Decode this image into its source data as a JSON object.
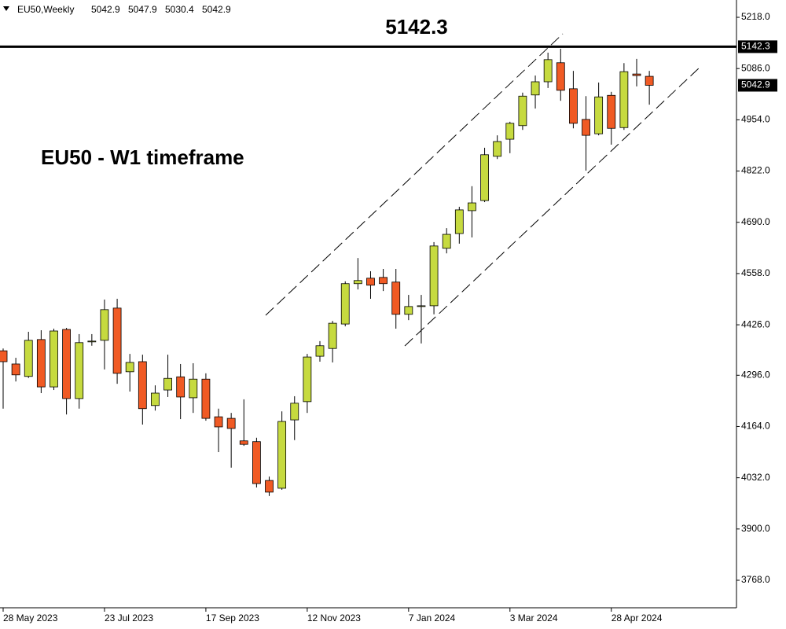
{
  "chart_data": {
    "type": "candlestick",
    "symbol": "EU50,Weekly",
    "header_values": [
      5042.9,
      5047.9,
      5030.4,
      5042.9
    ],
    "title": "EU50 - W1 timeframe",
    "level": 5142.3,
    "categories": [
      "28 May 2023",
      null,
      null,
      null,
      null,
      null,
      null,
      null,
      "23 Jul 2023",
      null,
      null,
      null,
      null,
      null,
      null,
      null,
      "17 Sep 2023",
      null,
      null,
      null,
      null,
      null,
      null,
      null,
      "12 Nov 2023",
      null,
      null,
      null,
      null,
      null,
      null,
      null,
      "7 Jan 2024",
      null,
      null,
      null,
      null,
      null,
      null,
      null,
      "3 Mar 2024",
      null,
      null,
      null,
      null,
      null,
      null,
      null,
      "28 Apr 2024",
      null,
      null,
      null
    ],
    "open": [
      4359,
      4325,
      4293,
      4388,
      4266,
      4414,
      4236,
      4382,
      4386,
      4469,
      4305,
      4331,
      4218,
      4258,
      4292,
      4238,
      4286,
      4189,
      4185,
      4127,
      4125,
      4025,
      4005,
      4181,
      4228,
      4345,
      4365,
      4428,
      4532,
      4546,
      4548,
      4536,
      4453,
      4474,
      4475,
      4623,
      4661,
      4720,
      4746,
      4860,
      4904,
      4939,
      5018,
      5052,
      5101,
      5034,
      4955,
      4918,
      5017,
      4934,
      5072,
      5066
    ],
    "high": [
      4365,
      4341,
      4408,
      4412,
      4416,
      4418,
      4402,
      4402,
      4491,
      4493,
      4351,
      4349,
      4270,
      4349,
      4325,
      4327,
      4301,
      4210,
      4199,
      4234,
      4135,
      4035,
      4203,
      4242,
      4351,
      4384,
      4436,
      4538,
      4598,
      4564,
      4570,
      4570,
      4503,
      4503,
      4639,
      4675,
      4730,
      4783,
      4882,
      4914,
      4949,
      5024,
      5068,
      5127,
      5137,
      5080,
      5015,
      5050,
      5026,
      5100,
      5111,
      5080
    ],
    "low": [
      4210,
      4280,
      4289,
      4250,
      4258,
      4195,
      4210,
      4372,
      4311,
      4274,
      4254,
      4169,
      4205,
      4240,
      4183,
      4199,
      4179,
      4098,
      4058,
      4114,
      4007,
      3985,
      4001,
      4129,
      4199,
      4331,
      4329,
      4422,
      4517,
      4493,
      4513,
      4416,
      4438,
      4378,
      4453,
      4610,
      4635,
      4651,
      4742,
      4853,
      4868,
      4928,
      4983,
      5036,
      5003,
      4932,
      4823,
      4914,
      4890,
      4928,
      5040,
      4993
    ],
    "close": [
      4331,
      4297,
      4386,
      4266,
      4410,
      4236,
      4380,
      4384,
      4465,
      4301,
      4329,
      4210,
      4250,
      4288,
      4240,
      4286,
      4185,
      4163,
      4159,
      4118,
      4017,
      3995,
      4177,
      4224,
      4343,
      4372,
      4430,
      4532,
      4540,
      4528,
      4532,
      4453,
      4473,
      4475,
      4629,
      4659,
      4722,
      4740,
      4864,
      4898,
      4945,
      5015,
      5052,
      5109,
      5030,
      4945,
      4914,
      5013,
      4932,
      5078,
      5068,
      5042.9
    ],
    "up_color": "#c6da3f",
    "down_color": "#f05a24",
    "ylim": [
      3697.1,
      5262.6
    ],
    "yticks": [
      {
        "value": 3768,
        "label": "3768.0"
      },
      {
        "value": 3900,
        "label": "3900.0"
      },
      {
        "value": 4032,
        "label": "4032.0"
      },
      {
        "value": 4164,
        "label": "4164.0"
      },
      {
        "value": 4296,
        "label": "4296.0"
      },
      {
        "value": 4426,
        "label": "4426.0"
      },
      {
        "value": 4558,
        "label": "4558.0"
      },
      {
        "value": 4690,
        "label": "4690.0"
      },
      {
        "value": 4822,
        "label": "4822.0"
      },
      {
        "value": 4954,
        "label": "4954.0"
      },
      {
        "value": 5086,
        "label": "5086.0"
      },
      {
        "value": 5218,
        "label": "5218.0"
      }
    ]
  }
}
